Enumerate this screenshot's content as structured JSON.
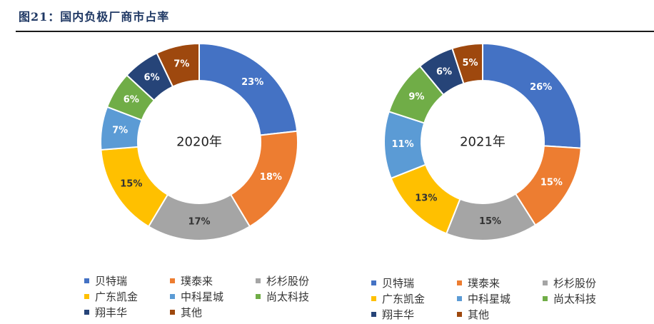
{
  "figure_title": "图21：国内负极厂商市占率",
  "colors": {
    "title": "#1f3864",
    "rule": "#1a1a1a",
    "series": [
      "#4472c4",
      "#ed7d31",
      "#a5a5a5",
      "#ffc000",
      "#5b9bd5",
      "#70ad47",
      "#264478",
      "#9e480e"
    ]
  },
  "chart_data": [
    {
      "type": "pie",
      "variant": "donut",
      "center_label": "2020年",
      "categories": [
        "贝特瑞",
        "璞泰来",
        "杉杉股份",
        "广东凯金",
        "中科星城",
        "尚太科技",
        "翔丰华",
        "其他"
      ],
      "values": [
        23,
        18,
        17,
        15,
        7,
        6,
        6,
        7
      ],
      "labels": [
        "23%",
        "18%",
        "17%",
        "15%",
        "7%",
        "6%",
        "6%",
        "7%"
      ],
      "legend": "bottom"
    },
    {
      "type": "pie",
      "variant": "donut",
      "center_label": "2021年",
      "categories": [
        "贝特瑞",
        "璞泰来",
        "杉杉股份",
        "广东凯金",
        "中科星城",
        "尚太科技",
        "翔丰华",
        "其他"
      ],
      "values": [
        26,
        15,
        15,
        13,
        11,
        9,
        6,
        5
      ],
      "labels": [
        "26%",
        "15%",
        "15%",
        "13%",
        "11%",
        "9%",
        "6%",
        "5%"
      ],
      "legend": "bottom"
    }
  ]
}
